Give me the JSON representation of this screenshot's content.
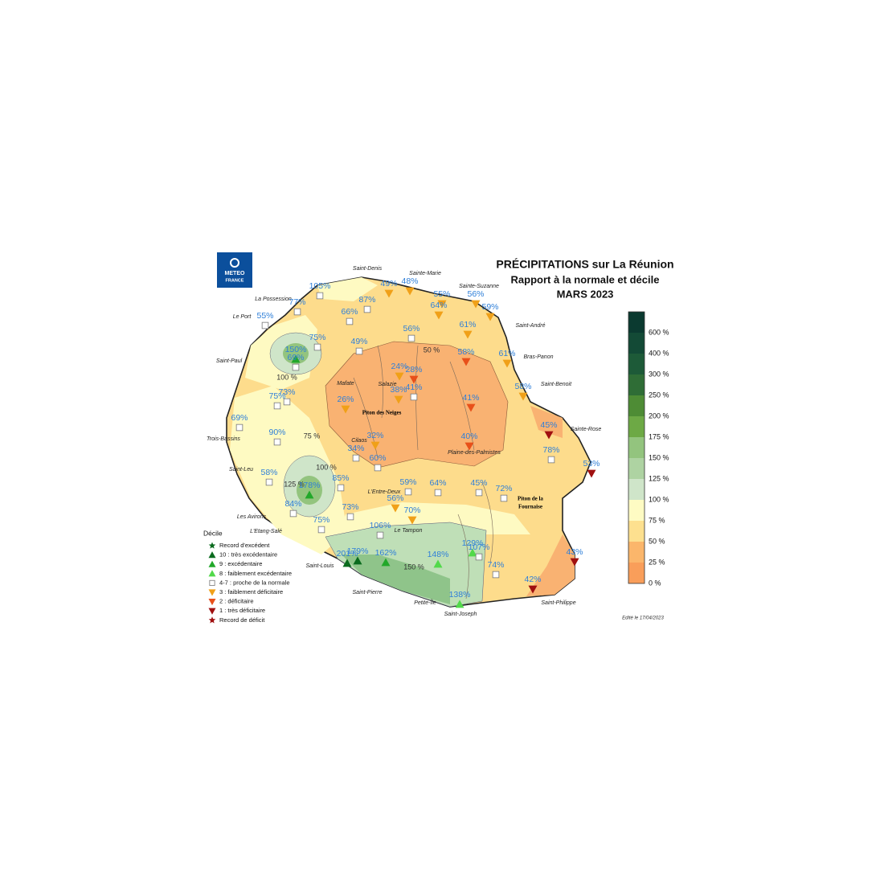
{
  "logo": [
    "METEO",
    "FRANCE"
  ],
  "title": [
    "PRÉCIPITATIONS sur La Réunion",
    "Rapport à la normale et décile",
    "MARS 2023"
  ],
  "places": [
    "Saint-Denis",
    "Sainte-Marie",
    "Sainte-Suzanne",
    "La Possession",
    "Le Port",
    "Saint-André",
    "Bras-Panon",
    "Saint-Paul",
    "Saint-Benoit",
    "Mafate",
    "Salazie",
    "Piton des Neiges",
    "Sainte-Rose",
    "Trois-Bassins",
    "Cilaos",
    "Plaine-des-Palmistes",
    "Saint-Leu",
    "L'Entre-Deux",
    "Piton de la",
    "Fournaise",
    "Les Avirons",
    "L'Etang-Salé",
    "Le Tampon",
    "Saint-Louis",
    "Saint-Pierre",
    "Petite-Île",
    "Saint-Joseph",
    "Saint-Philippe"
  ],
  "contours": [
    "50 %",
    "75 %",
    "100 %",
    "100 %",
    "125 %",
    "150 %"
  ],
  "legend": {
    "title": "Décile",
    "items": [
      {
        "label": "Record d'excédent",
        "shape": "star",
        "color": "#0a6b1e",
        "stations": []
      },
      {
        "label": "10 : très excédentaire",
        "shape": "up",
        "color": "#0a6b1e",
        "stations": [
          "201%",
          "179%"
        ]
      },
      {
        "label": "9 : excédentaire",
        "shape": "up",
        "color": "#22a82a",
        "stations": [
          "150%",
          "178%",
          "162%"
        ]
      },
      {
        "label": "8 : faiblement excédentaire",
        "shape": "up",
        "color": "#52d94a",
        "stations": [
          "129%",
          "148%",
          "138%"
        ]
      },
      {
        "label": "4-7 : proche de la normale",
        "shape": "square",
        "color": "#ffffff",
        "stations": [
          "105%",
          "77%",
          "55%",
          "66%",
          "87%",
          "75%",
          "49%",
          "56%",
          "69%",
          "73%",
          "75%",
          "69%",
          "90%",
          "34%",
          "60%",
          "41%",
          "59%",
          "64%",
          "45%",
          "72%",
          "78%",
          "58%",
          "85%",
          "84%",
          "73%",
          "75%",
          "106%",
          "74%",
          "107%"
        ]
      },
      {
        "label": "3 : faiblement déficitaire",
        "shape": "down",
        "color": "#f0a018",
        "stations": [
          "49%",
          "48%",
          "55%",
          "56%",
          "64%",
          "59%",
          "61%",
          "61%",
          "58%",
          "24%",
          "38%",
          "26%",
          "32%",
          "56%",
          "70%"
        ]
      },
      {
        "label": "2 : déficitaire",
        "shape": "down",
        "color": "#e8501a",
        "stations": [
          "58%",
          "28%",
          "41%",
          "40%"
        ]
      },
      {
        "label": "1 : très déficitaire",
        "shape": "down",
        "color": "#a01010",
        "stations": [
          "45%",
          "53%",
          "43%",
          "42%"
        ]
      },
      {
        "label": "Record de déficit",
        "shape": "star",
        "color": "#a01010",
        "stations": []
      }
    ]
  },
  "colorbar": {
    "labels": [
      "600 %",
      "400 %",
      "300 %",
      "250 %",
      "200 %",
      "175 %",
      "150 %",
      "125 %",
      "100 %",
      "75 %",
      "50 %",
      "25 %",
      "0 %"
    ],
    "colors": [
      "#0b3a30",
      "#134a36",
      "#1d5a38",
      "#2f6d36",
      "#4e8c35",
      "#6da945",
      "#93c47e",
      "#aed3a2",
      "#cfe5c9",
      "#fefbc3",
      "#fde08f",
      "#fbb66b",
      "#f99e5a"
    ]
  },
  "edit_date": "Edité le 17/04/2023"
}
